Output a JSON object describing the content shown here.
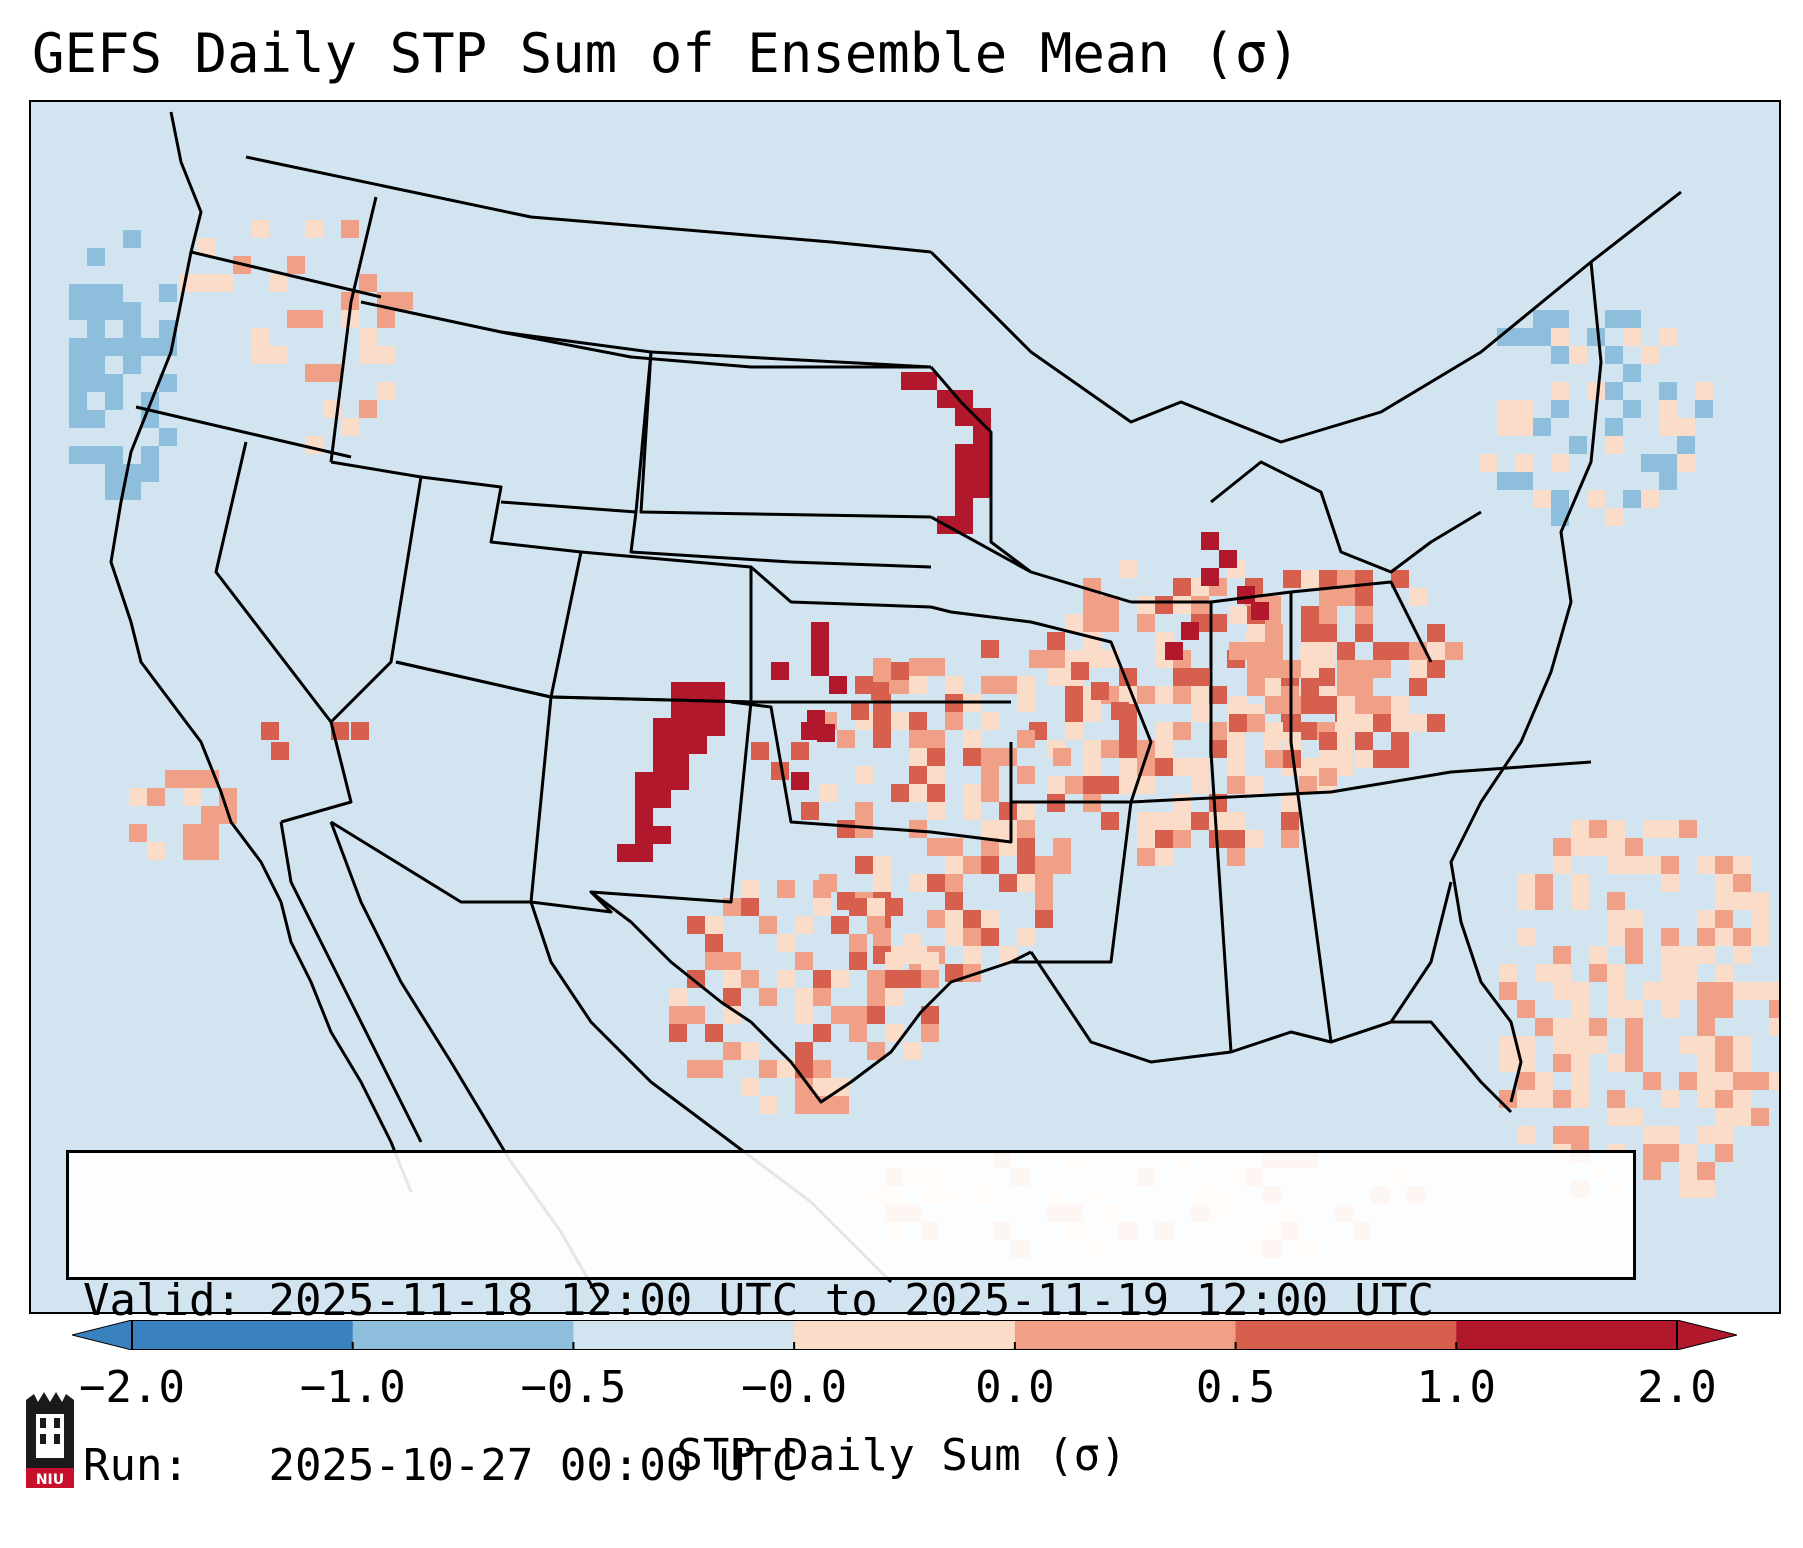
{
  "title": "GEFS Daily STP Sum of Ensemble Mean (σ)",
  "info": {
    "valid_label": "Valid:",
    "valid_value": "2025-11-18 12:00 UTC to 2025-11-19 12:00 UTC",
    "run_label": "Run:",
    "run_value": "2025-10-27 00:00 UTC"
  },
  "colorbar": {
    "label": "STP Daily Sum (σ)",
    "ticks": [
      "−2.0",
      "−1.0",
      "−0.5",
      "−0.0",
      "0.0",
      "0.5",
      "1.0",
      "2.0"
    ],
    "colors": [
      "#3a82bf",
      "#8dbfdd",
      "#d2e4ef",
      "#fbdcc8",
      "#f0a086",
      "#d6604d",
      "#b2182b"
    ],
    "extend": "both"
  },
  "colors": {
    "neutral": "#d2e4ef",
    "light_blue": "#8dbfdd",
    "light_red": "#fbdcc8",
    "mid_red": "#f0a086",
    "red": "#d6604d",
    "dark_red": "#b2182b"
  },
  "logo": {
    "name": "niu-logo",
    "text": "NIU"
  }
}
